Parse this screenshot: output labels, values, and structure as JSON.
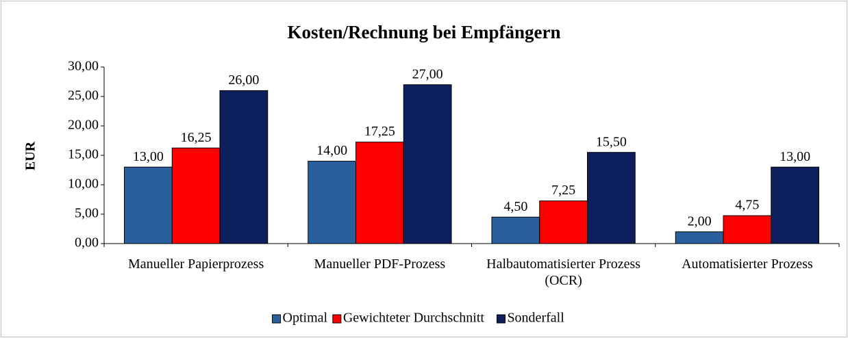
{
  "chart_data": {
    "type": "bar",
    "title": "Kosten/Rechnung bei Empfängern",
    "y_label": "EUR",
    "categories": [
      "Manueller Papierprozess",
      "Manueller PDF-Prozess",
      "Halbautomatisierter Prozess (OCR)",
      "Automatisierter Prozess"
    ],
    "series": [
      {
        "name": "Optimal",
        "color": "#2a5f9e",
        "values": [
          13,
          14,
          4.5,
          2
        ],
        "value_labels": [
          "13,00",
          "14,00",
          "4,50",
          "2,00"
        ]
      },
      {
        "name": "Gewichteter Durchschnitt",
        "color": "#ff0000",
        "values": [
          16.25,
          17.25,
          7.25,
          4.75
        ],
        "value_labels": [
          "16,25",
          "17,25",
          "7,25",
          "4,75"
        ]
      },
      {
        "name": "Sonderfall",
        "color": "#0d1f5c",
        "values": [
          26,
          27,
          15.5,
          13
        ],
        "value_labels": [
          "26,00",
          "27,00",
          "15,50",
          "13,00"
        ]
      }
    ],
    "ylim": [
      0,
      30
    ],
    "yticks": [
      {
        "value": 0,
        "label": "0,00"
      },
      {
        "value": 5,
        "label": "5,00"
      },
      {
        "value": 10,
        "label": "10,00"
      },
      {
        "value": 15,
        "label": "15,00"
      },
      {
        "value": 20,
        "label": "20,00"
      },
      {
        "value": 25,
        "label": "25,00"
      },
      {
        "value": 30,
        "label": "30,00"
      }
    ],
    "legend": "bottom"
  }
}
